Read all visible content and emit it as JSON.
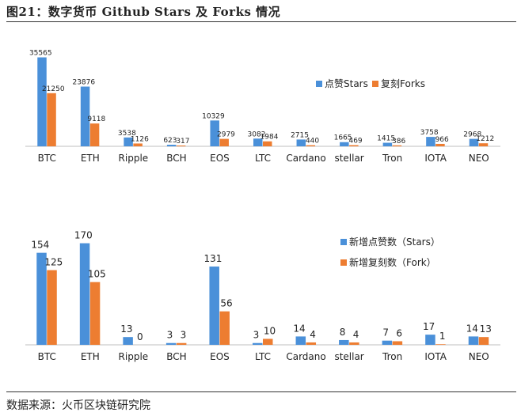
{
  "figure_title": "图21：数字货币 Github Stars 及 Forks 情况",
  "source_note": "数据来源：火币区块链研究院",
  "colors": {
    "stars": "#4a90d9",
    "forks": "#ed7d31",
    "axis": "#bfbfbf"
  },
  "chart_data": [
    {
      "type": "bar",
      "categories": [
        "BTC",
        "ETH",
        "Ripple",
        "BCH",
        "EOS",
        "LTC",
        "Cardano",
        "stellar",
        "Tron",
        "IOTA",
        "NEO"
      ],
      "series": [
        {
          "name": "点赞Stars",
          "values": [
            35565,
            23876,
            3538,
            623,
            10329,
            3082,
            2715,
            1665,
            1415,
            3758,
            2968
          ]
        },
        {
          "name": "复刻Forks",
          "values": [
            21250,
            9118,
            1126,
            317,
            2979,
            1984,
            440,
            469,
            386,
            966,
            1212
          ]
        }
      ],
      "ylim": [
        0,
        37000
      ],
      "legend": "right",
      "grid": false
    },
    {
      "type": "bar",
      "categories": [
        "BTC",
        "ETH",
        "Ripple",
        "BCH",
        "EOS",
        "LTC",
        "Cardano",
        "stellar",
        "Tron",
        "IOTA",
        "NEO"
      ],
      "series": [
        {
          "name": "新增点赞数（Stars）",
          "values": [
            154,
            170,
            13,
            3,
            131,
            3,
            14,
            8,
            7,
            17,
            14
          ]
        },
        {
          "name": "新增复刻数（Fork）",
          "values": [
            125,
            105,
            0,
            3,
            56,
            10,
            4,
            4,
            6,
            1,
            13
          ]
        }
      ],
      "ylim": [
        0,
        180
      ],
      "legend": "right",
      "grid": false
    }
  ]
}
